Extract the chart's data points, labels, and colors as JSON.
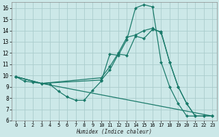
{
  "xlabel": "Humidex (Indice chaleur)",
  "bg_color": "#cce8e8",
  "grid_color": "#aacccc",
  "line_color": "#1a7a6a",
  "xlim": [
    -0.5,
    23.5
  ],
  "ylim": [
    6,
    16.5
  ],
  "xtick_labels": [
    "0",
    "1",
    "2",
    "3",
    "4",
    "5",
    "6",
    "7",
    "8",
    "9",
    "10",
    "11",
    "12",
    "13",
    "14",
    "15",
    "16",
    "17",
    "18",
    "19",
    "20",
    "21",
    "22",
    "23"
  ],
  "ytick_labels": [
    "6",
    "7",
    "8",
    "9",
    "10",
    "11",
    "12",
    "13",
    "14",
    "15",
    "16"
  ],
  "xticks": [
    0,
    1,
    2,
    3,
    4,
    5,
    6,
    7,
    8,
    9,
    10,
    11,
    12,
    13,
    14,
    15,
    16,
    17,
    18,
    19,
    20,
    21,
    22,
    23
  ],
  "yticks": [
    6,
    7,
    8,
    9,
    10,
    11,
    12,
    13,
    14,
    15,
    16
  ],
  "lines": [
    {
      "x": [
        0,
        1,
        2,
        3,
        4,
        5,
        6,
        7,
        8,
        9,
        10,
        11,
        12,
        13,
        14,
        15,
        16,
        17,
        18,
        19,
        20,
        21,
        22,
        23
      ],
      "y": [
        9.9,
        9.5,
        9.4,
        9.3,
        9.2,
        8.6,
        8.1,
        7.8,
        7.8,
        8.7,
        9.5,
        11.9,
        11.8,
        13.2,
        16.0,
        16.3,
        16.1,
        11.2,
        9.0,
        7.5,
        6.4,
        6.4,
        6.4,
        6.4
      ],
      "marker": "D",
      "ms": 2.0,
      "lw": 0.9
    },
    {
      "x": [
        0,
        3,
        10,
        11,
        12,
        13,
        14,
        15,
        16,
        17,
        18,
        19,
        20,
        21,
        22,
        23
      ],
      "y": [
        9.9,
        9.3,
        9.8,
        10.8,
        12.0,
        13.4,
        13.6,
        14.0,
        14.2,
        13.8,
        11.2,
        9.0,
        7.5,
        6.4,
        6.4,
        6.4
      ],
      "marker": "D",
      "ms": 2.0,
      "lw": 0.9
    },
    {
      "x": [
        0,
        3,
        10,
        11,
        12,
        13,
        14,
        15,
        16,
        17,
        18,
        19,
        20,
        21,
        22,
        23
      ],
      "y": [
        9.9,
        9.3,
        9.6,
        10.5,
        11.9,
        11.8,
        13.5,
        13.3,
        14.1,
        13.9,
        11.2,
        9.0,
        7.5,
        6.4,
        6.4,
        6.4
      ],
      "marker": "D",
      "ms": 2.0,
      "lw": 0.9
    },
    {
      "x": [
        0,
        3,
        23
      ],
      "y": [
        9.9,
        9.3,
        6.4
      ],
      "marker": null,
      "ms": 0,
      "lw": 0.9
    }
  ]
}
